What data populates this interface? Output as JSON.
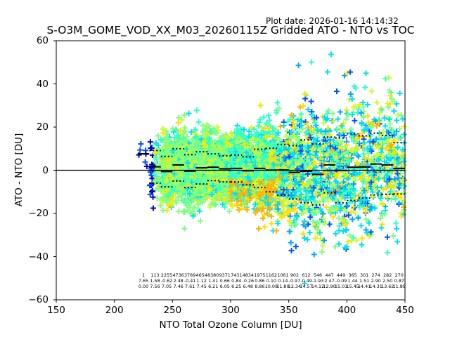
{
  "plot_date": "Plot date: 2026-01-16 14:14:32",
  "chart_data": {
    "type": "scatter",
    "title": "S-O3M_GOME_VOD_XX_M03_20260115Z Gridded ATO - NTO vs TOC",
    "xlabel": "NTO Total Ozone Column [DU]",
    "ylabel": "ATO - NTO [DU]",
    "xlim": [
      150,
      450
    ],
    "ylim": [
      -60,
      60
    ],
    "xticks": [
      "150",
      "200",
      "250",
      "300",
      "350",
      "400",
      "450"
    ],
    "yticks": [
      "60",
      "40",
      "20",
      "0",
      "−20",
      "−40",
      "−60"
    ],
    "xtick_values": [
      150,
      200,
      250,
      300,
      350,
      400,
      450
    ],
    "ytick_values": [
      60,
      40,
      20,
      0,
      -20,
      -40,
      -60
    ],
    "grid": false,
    "marker": "+",
    "zero_line": 0,
    "bin_width": 10,
    "bins": {
      "centers": [
        225,
        235,
        245,
        255,
        265,
        275,
        285,
        295,
        305,
        315,
        325,
        335,
        345,
        355,
        365,
        375,
        385,
        395,
        405,
        415,
        425,
        435,
        445
      ],
      "count": [
        "1",
        "113",
        "2255",
        "4736",
        "3789",
        "4654",
        "8380",
        "9371",
        "7431",
        "4834",
        "1975",
        "1162",
        "1061",
        "902",
        "612",
        "546",
        "447",
        "449",
        "365",
        "301",
        "274",
        "282",
        "270"
      ],
      "mean": [
        "7.65",
        "1.58",
        "-0.62",
        "2.48",
        "-0.41",
        "1.12",
        "1.41",
        "0.66",
        "0.84",
        "-0.26",
        "0.86",
        "0.10",
        "0.14",
        "-0.97",
        "-0.49",
        "-1.93",
        "2.47",
        "-0.09",
        "1.44",
        "1.51",
        "2.90",
        "2.50",
        "0.87"
      ],
      "std": [
        "0.00",
        "7.56",
        "7.05",
        "7.46",
        "7.61",
        "7.45",
        "6.21",
        "6.05",
        "6.25",
        "6.48",
        "8.86",
        "10.09",
        "11.80",
        "12.34",
        "14.57",
        "14.12",
        "12.90",
        "15.01",
        "15.45",
        "14.41",
        "14.31",
        "13.62",
        "11.89"
      ]
    },
    "scatter_colors": [
      "#0000cd",
      "#0050ff",
      "#00a8ff",
      "#00e0f0",
      "#30ffc8",
      "#80ff80",
      "#c8ff30",
      "#ffe000",
      "#ffb000"
    ],
    "mean_line_color": "#000000",
    "std_line_color": "#000000"
  }
}
